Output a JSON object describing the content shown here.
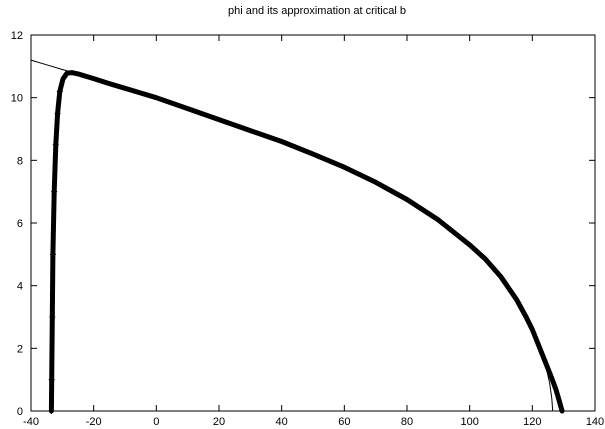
{
  "chart_data": {
    "type": "line",
    "title": "phi and its approximation at critical b",
    "xlabel": "",
    "ylabel": "",
    "xlim": [
      -40,
      140
    ],
    "ylim": [
      0,
      12
    ],
    "x_ticks": [
      -40,
      -20,
      0,
      20,
      40,
      60,
      80,
      100,
      120,
      140
    ],
    "y_ticks": [
      0,
      2,
      4,
      6,
      8,
      10,
      12
    ],
    "x_tick_labels": [
      "-40",
      "-20",
      "0",
      "20",
      "40",
      "60",
      "80",
      "100",
      "120",
      "140"
    ],
    "y_tick_labels": [
      "0",
      "2",
      "4",
      "6",
      "8",
      "10",
      "12"
    ],
    "grid": false,
    "series": [
      {
        "style": "thin-line",
        "color": "#000000",
        "points": [
          [
            -40,
            11.2
          ],
          [
            -35,
            11.05
          ],
          [
            -30,
            10.9
          ],
          [
            -25,
            10.76
          ],
          [
            -20,
            10.61
          ],
          [
            -15,
            10.45
          ],
          [
            -10,
            10.3
          ],
          [
            -5,
            10.15
          ],
          [
            0,
            10.0
          ],
          [
            10,
            9.65
          ],
          [
            20,
            9.3
          ],
          [
            30,
            8.95
          ],
          [
            40,
            8.6
          ],
          [
            50,
            8.2
          ],
          [
            60,
            7.78
          ],
          [
            70,
            7.3
          ],
          [
            80,
            6.75
          ],
          [
            90,
            6.1
          ],
          [
            100,
            5.3
          ],
          [
            105,
            4.85
          ],
          [
            110,
            4.3
          ],
          [
            115,
            3.6
          ],
          [
            118,
            3.1
          ],
          [
            120,
            2.7
          ],
          [
            122,
            2.2
          ],
          [
            124,
            1.55
          ],
          [
            125.5,
            0.9
          ],
          [
            126.2,
            0.4
          ],
          [
            126.5,
            0
          ]
        ]
      },
      {
        "style": "thick-markers",
        "color": "#000000",
        "points": [
          [
            -33.5,
            0
          ],
          [
            -33.4,
            1
          ],
          [
            -33.2,
            3
          ],
          [
            -33.0,
            5
          ],
          [
            -32.6,
            7
          ],
          [
            -32.1,
            8.5
          ],
          [
            -31.5,
            9.5
          ],
          [
            -30.8,
            10.2
          ],
          [
            -29.8,
            10.6
          ],
          [
            -28.5,
            10.78
          ],
          [
            -27,
            10.8
          ],
          [
            -25,
            10.76
          ],
          [
            -20,
            10.61
          ],
          [
            -15,
            10.45
          ],
          [
            -10,
            10.3
          ],
          [
            -5,
            10.15
          ],
          [
            0,
            10.0
          ],
          [
            10,
            9.65
          ],
          [
            20,
            9.3
          ],
          [
            30,
            8.95
          ],
          [
            40,
            8.6
          ],
          [
            50,
            8.2
          ],
          [
            60,
            7.78
          ],
          [
            70,
            7.3
          ],
          [
            80,
            6.75
          ],
          [
            90,
            6.1
          ],
          [
            100,
            5.3
          ],
          [
            105,
            4.85
          ],
          [
            110,
            4.28
          ],
          [
            115,
            3.55
          ],
          [
            118,
            3.0
          ],
          [
            120,
            2.6
          ],
          [
            122,
            2.1
          ],
          [
            124,
            1.6
          ],
          [
            126,
            1.1
          ],
          [
            127.5,
            0.7
          ],
          [
            128.5,
            0.35
          ],
          [
            129.2,
            0.1
          ],
          [
            129.5,
            0
          ]
        ]
      }
    ]
  }
}
